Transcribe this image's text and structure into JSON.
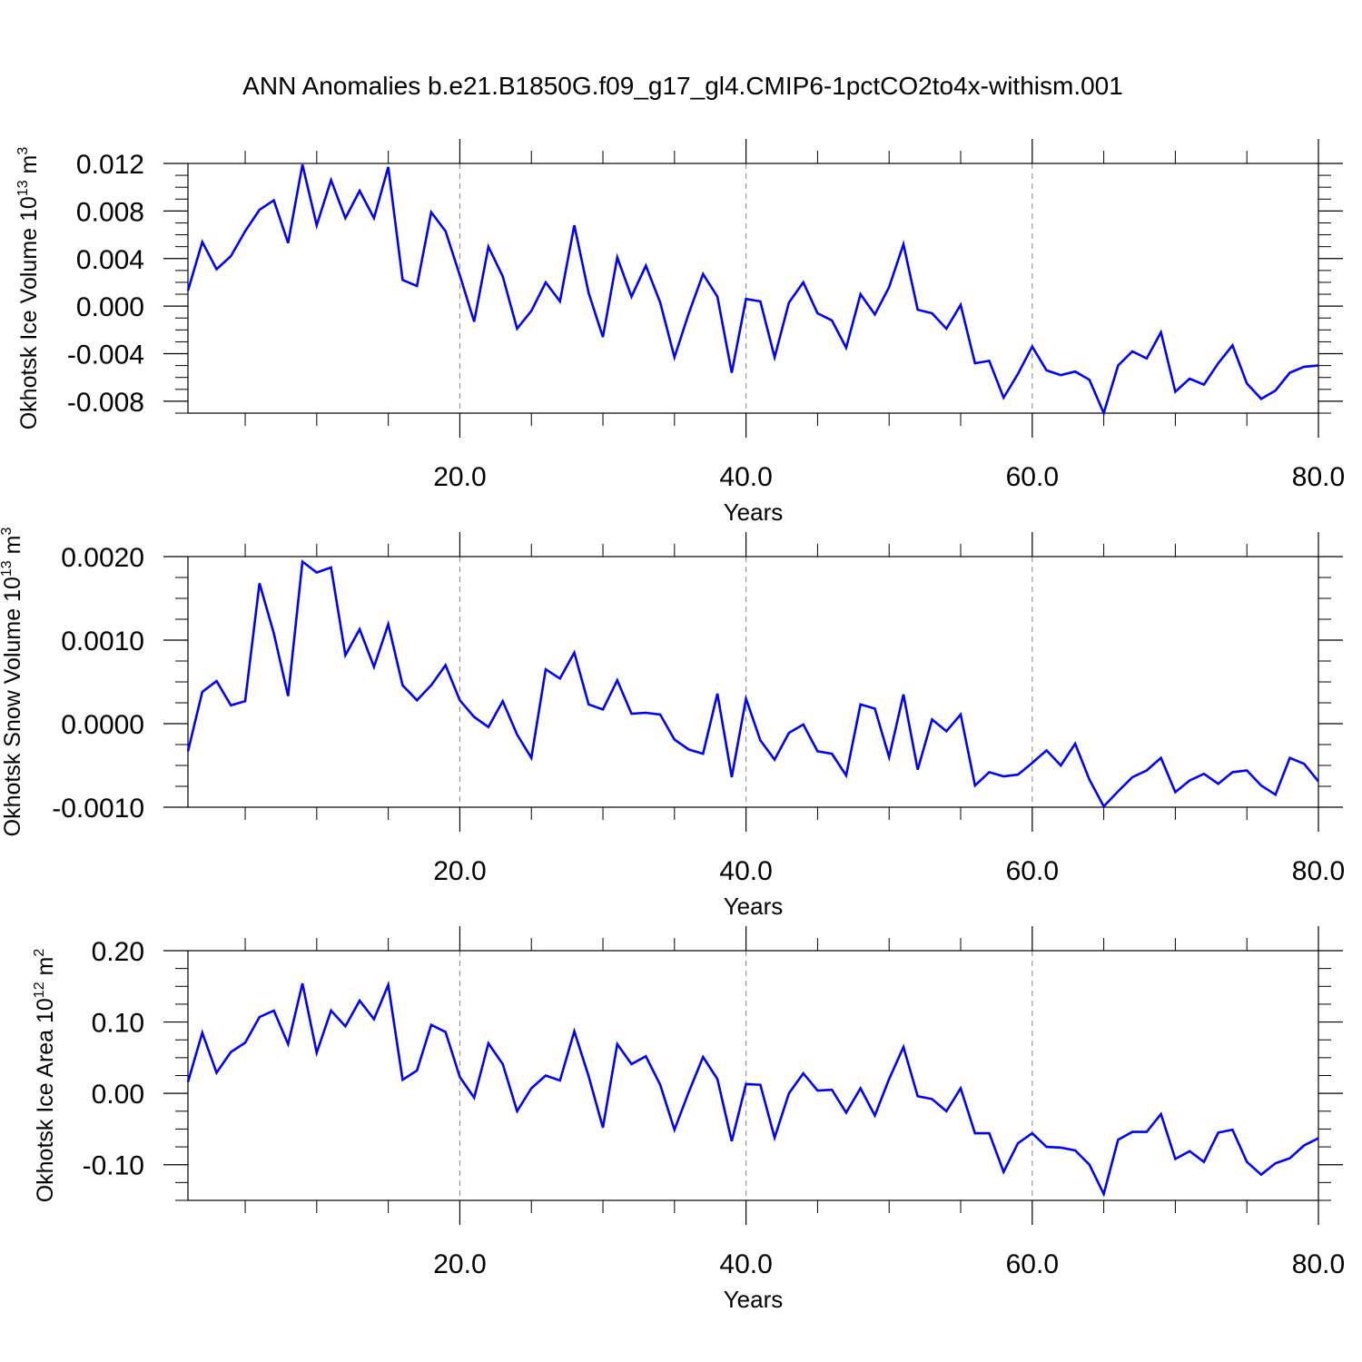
{
  "title": "ANN Anomalies b.e21.B1850G.f09_g17_gl4.CMIP6-1pctCO2to4x-withism.001",
  "line_color": "#0000ff",
  "chart_data": [
    {
      "type": "line",
      "ylabel": {
        "base": "Okhotsk Ice Volume 10",
        "exp": "13",
        "unit": " m",
        "unit_exp": "3"
      },
      "xlabel": "Years",
      "xlim": [
        1,
        80
      ],
      "ylim": [
        -0.009,
        0.012
      ],
      "xticks": [
        20,
        40,
        60,
        80
      ],
      "xtick_labels": [
        "20.0",
        "40.0",
        "60.0",
        "80.0"
      ],
      "yticks": [
        -0.008,
        -0.004,
        0.0,
        0.004,
        0.008,
        0.012
      ],
      "ytick_labels": [
        "-0.008",
        "-0.004",
        "0.000",
        "0.004",
        "0.008",
        "0.012"
      ],
      "grid": "dashed vertical at x ticks",
      "series": [
        {
          "x": [
            1,
            2,
            3,
            4,
            5,
            6,
            7,
            8,
            9,
            10,
            11,
            12,
            13,
            14,
            15,
            16,
            17,
            18,
            19,
            20,
            21,
            22,
            23,
            24,
            25,
            26,
            27,
            28,
            29,
            30,
            31,
            32,
            33,
            34,
            35,
            36,
            37,
            38,
            39,
            40,
            41,
            42,
            43,
            44,
            45,
            46,
            47,
            48,
            49,
            50,
            51,
            52,
            53,
            54,
            55,
            56,
            57,
            58,
            59,
            60,
            61,
            62,
            63,
            64,
            65,
            66,
            67,
            68,
            69,
            70,
            71,
            72,
            73,
            74,
            75,
            76,
            77,
            78,
            79,
            80
          ],
          "values": [
            0.0013,
            0.0054,
            0.0031,
            0.0042,
            0.0063,
            0.0081,
            0.0089,
            0.0053,
            0.0119,
            0.0068,
            0.0106,
            0.0074,
            0.0097,
            0.0074,
            0.0117,
            0.0022,
            0.0017,
            0.0079,
            0.0063,
            0.0026,
            -0.0013,
            0.005,
            0.0025,
            -0.0019,
            -0.0004,
            0.002,
            0.0004,
            0.0068,
            0.0011,
            -0.0026,
            0.0041,
            0.0008,
            0.0034,
            0.0003,
            -0.0043,
            -0.0006,
            0.0027,
            0.0008,
            -0.0056,
            0.0006,
            0.0004,
            -0.0043,
            0.0003,
            0.002,
            -0.0006,
            -0.0012,
            -0.0035,
            0.001,
            -0.0007,
            0.0016,
            0.0052,
            -0.0003,
            -0.0006,
            -0.0019,
            0.0001,
            -0.0048,
            -0.0046,
            -0.0077,
            -0.0057,
            -0.0034,
            -0.0054,
            -0.0058,
            -0.0055,
            -0.0062,
            -0.009,
            -0.005,
            -0.0038,
            -0.0044,
            -0.0022,
            -0.0072,
            -0.0061,
            -0.0066,
            -0.0048,
            -0.0033,
            -0.0065,
            -0.0078,
            -0.0071,
            -0.0056,
            -0.0051,
            -0.005
          ]
        }
      ]
    },
    {
      "type": "line",
      "ylabel": {
        "base": "Okhotsk Snow Volume 10",
        "exp": "13",
        "unit": " m",
        "unit_exp": "3"
      },
      "xlabel": "Years",
      "xlim": [
        1,
        80
      ],
      "ylim": [
        -0.001,
        0.002
      ],
      "xticks": [
        20,
        40,
        60,
        80
      ],
      "xtick_labels": [
        "20.0",
        "40.0",
        "60.0",
        "80.0"
      ],
      "yticks": [
        -0.001,
        0.0,
        0.001,
        0.002
      ],
      "ytick_labels": [
        "-0.0010",
        "0.0000",
        "0.0010",
        "0.0020"
      ],
      "grid": "dashed vertical at x ticks",
      "series": [
        {
          "x": [
            1,
            2,
            3,
            4,
            5,
            6,
            7,
            8,
            9,
            10,
            11,
            12,
            13,
            14,
            15,
            16,
            17,
            18,
            19,
            20,
            21,
            22,
            23,
            24,
            25,
            26,
            27,
            28,
            29,
            30,
            31,
            32,
            33,
            34,
            35,
            36,
            37,
            38,
            39,
            40,
            41,
            42,
            43,
            44,
            45,
            46,
            47,
            48,
            49,
            50,
            51,
            52,
            53,
            54,
            55,
            56,
            57,
            58,
            59,
            60,
            61,
            62,
            63,
            64,
            65,
            66,
            67,
            68,
            69,
            70,
            71,
            72,
            73,
            74,
            75,
            76,
            77,
            78,
            79,
            80
          ],
          "values": [
            -0.00033,
            0.00038,
            0.00051,
            0.00022,
            0.00027,
            0.00168,
            0.00108,
            0.00033,
            0.00194,
            0.00181,
            0.00187,
            0.00082,
            0.00113,
            0.00068,
            0.00119,
            0.00046,
            0.00028,
            0.00046,
            0.0007,
            0.00028,
            8e-05,
            -4e-05,
            0.00027,
            -0.00013,
            -0.00041,
            0.00065,
            0.00054,
            0.00085,
            0.00023,
            0.00017,
            0.00052,
            0.00012,
            0.00013,
            0.00011,
            -0.00019,
            -0.00031,
            -0.00036,
            0.00036,
            -0.00064,
            0.0003,
            -0.0002,
            -0.00043,
            -0.00011,
            -1e-05,
            -0.00033,
            -0.00036,
            -0.00062,
            0.00023,
            0.00018,
            -0.0004,
            0.00035,
            -0.00055,
            5e-05,
            -9e-05,
            0.00011,
            -0.00074,
            -0.00058,
            -0.00063,
            -0.00061,
            -0.00047,
            -0.00032,
            -0.0005,
            -0.00024,
            -0.00067,
            -0.00099,
            -0.00081,
            -0.00064,
            -0.00056,
            -0.00041,
            -0.00082,
            -0.00068,
            -0.0006,
            -0.00072,
            -0.00058,
            -0.00056,
            -0.00074,
            -0.00085,
            -0.00041,
            -0.00048,
            -0.00069
          ]
        }
      ]
    },
    {
      "type": "line",
      "ylabel": {
        "base": "Okhotsk Ice Area 10",
        "exp": "12",
        "unit": " m",
        "unit_exp": "2"
      },
      "xlabel": "Years",
      "xlim": [
        1,
        80
      ],
      "ylim": [
        -0.15,
        0.2
      ],
      "xticks": [
        20,
        40,
        60,
        80
      ],
      "xtick_labels": [
        "20.0",
        "40.0",
        "60.0",
        "80.0"
      ],
      "yticks": [
        -0.1,
        0.0,
        0.1,
        0.2
      ],
      "ytick_labels": [
        "-0.10",
        "0.00",
        "0.10",
        "0.20"
      ],
      "grid": "dashed vertical at x ticks",
      "series": [
        {
          "x": [
            1,
            2,
            3,
            4,
            5,
            6,
            7,
            8,
            9,
            10,
            11,
            12,
            13,
            14,
            15,
            16,
            17,
            18,
            19,
            20,
            21,
            22,
            23,
            24,
            25,
            26,
            27,
            28,
            29,
            30,
            31,
            32,
            33,
            34,
            35,
            36,
            37,
            38,
            39,
            40,
            41,
            42,
            43,
            44,
            45,
            46,
            47,
            48,
            49,
            50,
            51,
            52,
            53,
            54,
            55,
            56,
            57,
            58,
            59,
            60,
            61,
            62,
            63,
            64,
            65,
            66,
            67,
            68,
            69,
            70,
            71,
            72,
            73,
            74,
            75,
            76,
            77,
            78,
            79,
            80
          ],
          "values": [
            0.016,
            0.085,
            0.029,
            0.058,
            0.071,
            0.107,
            0.116,
            0.069,
            0.154,
            0.057,
            0.116,
            0.094,
            0.13,
            0.104,
            0.152,
            0.019,
            0.032,
            0.096,
            0.086,
            0.023,
            -0.006,
            0.07,
            0.041,
            -0.025,
            0.007,
            0.025,
            0.018,
            0.087,
            0.024,
            -0.048,
            0.069,
            0.041,
            0.052,
            0.012,
            -0.051,
            0.002,
            0.051,
            0.02,
            -0.067,
            0.013,
            0.012,
            -0.062,
            0.0,
            0.028,
            0.004,
            0.005,
            -0.027,
            0.007,
            -0.031,
            0.02,
            0.065,
            -0.004,
            -0.008,
            -0.025,
            0.007,
            -0.056,
            -0.056,
            -0.11,
            -0.07,
            -0.056,
            -0.075,
            -0.076,
            -0.08,
            -0.1,
            -0.141,
            -0.065,
            -0.054,
            -0.054,
            -0.029,
            -0.092,
            -0.081,
            -0.096,
            -0.055,
            -0.051,
            -0.096,
            -0.114,
            -0.098,
            -0.091,
            -0.073,
            -0.063
          ]
        }
      ]
    }
  ]
}
